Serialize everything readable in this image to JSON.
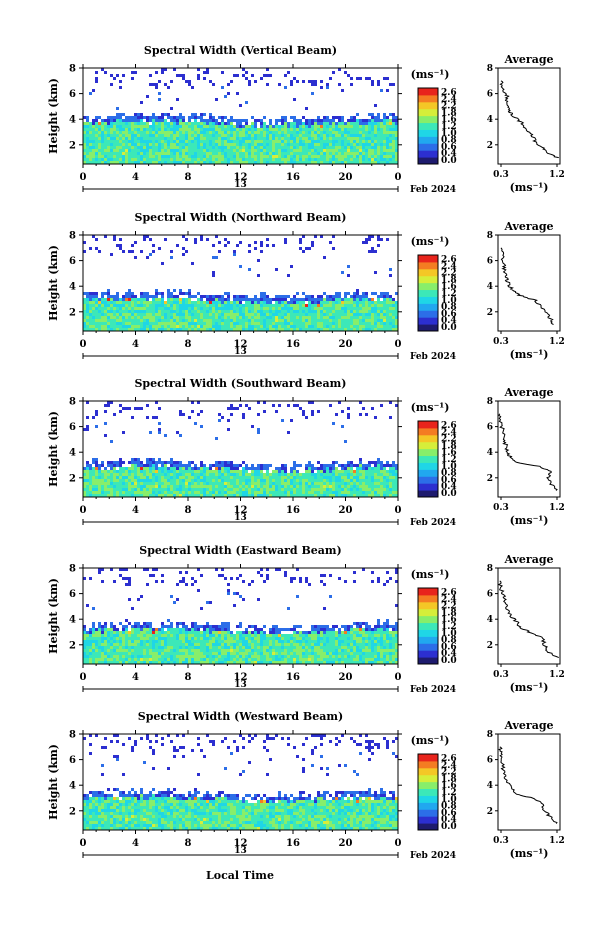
{
  "figure": {
    "bottom_xlabel": "Local Time",
    "date_label": "Feb 2024",
    "colorbar_units": "(ms⁻¹)",
    "colorbar_ticks": [
      "2.6",
      "2.4",
      "2.2",
      "1.8",
      "1.6",
      "1.2",
      "1.0",
      "0.8",
      "0.6",
      "0.4",
      "0.0"
    ],
    "colormap": [
      "#1e1b6e",
      "#2c2fd0",
      "#2c6ee8",
      "#21a8ef",
      "#1fd6e6",
      "#3ce8b8",
      "#88ee6a",
      "#d6ee3a",
      "#f4c726",
      "#f47c22",
      "#e8241c"
    ]
  },
  "chart_data": [
    {
      "type": "heatmap",
      "title": "Spectral Width (Vertical Beam)",
      "ylabel": "Height (km)",
      "xlim": [
        0,
        24
      ],
      "ylim": [
        0.5,
        8
      ],
      "xticks": [
        "0",
        "4",
        "8",
        "12",
        "16",
        "20",
        "0"
      ],
      "yticks": [
        "2",
        "4",
        "6",
        "8"
      ],
      "day_label": "13",
      "grid": false,
      "cloud_top_km": 3.8,
      "average": {
        "title": "Average",
        "xlabel": "(ms⁻¹)",
        "xticks": [
          "0.3",
          "1.2"
        ],
        "yticks": [
          "2",
          "4",
          "6",
          "8"
        ],
        "xlim": [
          0.3,
          1.2
        ],
        "ylim": [
          0.5,
          8
        ],
        "profile": [
          [
            1.2,
            1.0
          ],
          [
            1.05,
            1.4
          ],
          [
            0.95,
            1.8
          ],
          [
            0.85,
            2.3
          ],
          [
            0.78,
            2.8
          ],
          [
            0.7,
            3.3
          ],
          [
            0.62,
            3.8
          ],
          [
            0.5,
            4.2
          ],
          [
            0.45,
            4.6
          ],
          [
            0.42,
            5.0
          ],
          [
            0.38,
            5.4
          ],
          [
            0.4,
            5.8
          ],
          [
            0.35,
            6.2
          ],
          [
            0.33,
            6.6
          ],
          [
            0.3,
            7.0
          ]
        ]
      }
    },
    {
      "type": "heatmap",
      "title": "Spectral Width (Northward Beam)",
      "ylabel": "Height (km)",
      "xlim": [
        0,
        24
      ],
      "ylim": [
        0.5,
        8
      ],
      "xticks": [
        "0",
        "4",
        "8",
        "12",
        "16",
        "20",
        "0"
      ],
      "yticks": [
        "2",
        "4",
        "6",
        "8"
      ],
      "day_label": "13",
      "grid": false,
      "cloud_top_km": 3.0,
      "average": {
        "title": "Average",
        "xlabel": "(ms⁻¹)",
        "xticks": [
          "0.3",
          "1.2"
        ],
        "yticks": [
          "2",
          "4",
          "6",
          "8"
        ],
        "xlim": [
          0.3,
          1.2
        ],
        "ylim": [
          0.5,
          8
        ],
        "profile": [
          [
            1.15,
            1.0
          ],
          [
            1.1,
            1.4
          ],
          [
            1.05,
            1.8
          ],
          [
            0.95,
            2.4
          ],
          [
            0.85,
            2.9
          ],
          [
            0.6,
            3.3
          ],
          [
            0.48,
            3.7
          ],
          [
            0.42,
            4.2
          ],
          [
            0.38,
            4.7
          ],
          [
            0.36,
            5.2
          ],
          [
            0.34,
            5.7
          ],
          [
            0.32,
            6.3
          ],
          [
            0.3,
            7.0
          ]
        ]
      }
    },
    {
      "type": "heatmap",
      "title": "Spectral Width (Southward Beam)",
      "ylabel": "Height (km)",
      "xlim": [
        0,
        24
      ],
      "ylim": [
        0.5,
        8
      ],
      "xticks": [
        "0",
        "4",
        "8",
        "12",
        "16",
        "20",
        "0"
      ],
      "yticks": [
        "2",
        "4",
        "6",
        "8"
      ],
      "day_label": "13",
      "grid": false,
      "cloud_top_km": 2.8,
      "average": {
        "title": "Average",
        "xlabel": "(ms⁻¹)",
        "xticks": [
          "0.3",
          "1.2"
        ],
        "yticks": [
          "2",
          "4",
          "6",
          "8"
        ],
        "xlim": [
          0.3,
          1.2
        ],
        "ylim": [
          0.5,
          8
        ],
        "profile": [
          [
            1.2,
            1.0
          ],
          [
            1.1,
            1.5
          ],
          [
            1.05,
            2.0
          ],
          [
            1.1,
            2.5
          ],
          [
            0.9,
            2.9
          ],
          [
            0.55,
            3.2
          ],
          [
            0.45,
            3.6
          ],
          [
            0.4,
            4.0
          ],
          [
            0.38,
            4.5
          ],
          [
            0.35,
            5.0
          ],
          [
            0.33,
            5.6
          ],
          [
            0.3,
            6.3
          ],
          [
            0.28,
            7.0
          ]
        ]
      }
    },
    {
      "type": "heatmap",
      "title": "Spectral Width (Eastward Beam)",
      "ylabel": "Height (km)",
      "xlim": [
        0,
        24
      ],
      "ylim": [
        0.5,
        8
      ],
      "xticks": [
        "0",
        "4",
        "8",
        "12",
        "16",
        "20",
        "0"
      ],
      "yticks": [
        "2",
        "4",
        "6",
        "8"
      ],
      "day_label": "13",
      "grid": false,
      "cloud_top_km": 3.2,
      "average": {
        "title": "Average",
        "xlabel": "(ms⁻¹)",
        "xticks": [
          "0.3",
          "1.2"
        ],
        "yticks": [
          "2",
          "4",
          "6",
          "8"
        ],
        "xlim": [
          0.3,
          1.2
        ],
        "ylim": [
          0.5,
          8
        ],
        "profile": [
          [
            1.2,
            1.0
          ],
          [
            1.05,
            1.5
          ],
          [
            1.0,
            2.0
          ],
          [
            0.95,
            2.6
          ],
          [
            0.75,
            3.0
          ],
          [
            0.6,
            3.4
          ],
          [
            0.55,
            3.8
          ],
          [
            0.45,
            4.3
          ],
          [
            0.4,
            4.8
          ],
          [
            0.37,
            5.3
          ],
          [
            0.34,
            5.8
          ],
          [
            0.3,
            6.4
          ],
          [
            0.28,
            7.0
          ]
        ]
      }
    },
    {
      "type": "heatmap",
      "title": "Spectral Width (Westward Beam)",
      "ylabel": "Height (km)",
      "xlim": [
        0,
        24
      ],
      "ylim": [
        0.5,
        8
      ],
      "xticks": [
        "0",
        "4",
        "8",
        "12",
        "16",
        "20",
        "0"
      ],
      "yticks": [
        "2",
        "4",
        "6",
        "8"
      ],
      "day_label": "13",
      "grid": false,
      "cloud_top_km": 3.0,
      "average": {
        "title": "Average",
        "xlabel": "(ms⁻¹)",
        "xticks": [
          "0.3",
          "1.2"
        ],
        "yticks": [
          "2",
          "4",
          "6",
          "8"
        ],
        "xlim": [
          0.3,
          1.2
        ],
        "ylim": [
          0.5,
          8
        ],
        "profile": [
          [
            1.2,
            1.0
          ],
          [
            1.1,
            1.5
          ],
          [
            1.0,
            2.0
          ],
          [
            0.95,
            2.6
          ],
          [
            0.8,
            3.0
          ],
          [
            0.55,
            3.3
          ],
          [
            0.45,
            3.8
          ],
          [
            0.4,
            4.3
          ],
          [
            0.36,
            4.8
          ],
          [
            0.33,
            5.4
          ],
          [
            0.31,
            6.0
          ],
          [
            0.29,
            6.6
          ],
          [
            0.28,
            7.0
          ]
        ]
      }
    }
  ]
}
